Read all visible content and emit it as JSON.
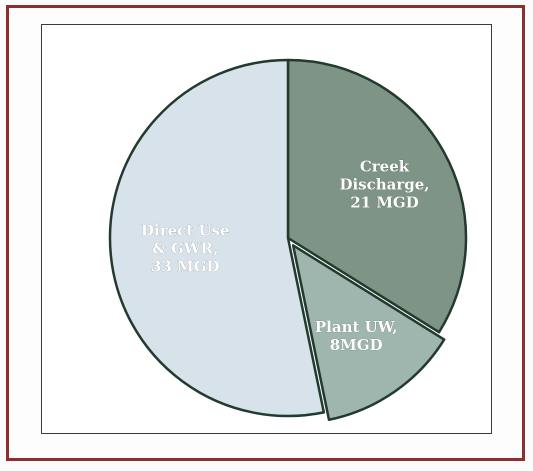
{
  "chart_data": {
    "type": "pie",
    "title": "",
    "slices": [
      {
        "label_lines": [
          "Creek",
          "Discharge,",
          "21 MGD"
        ],
        "value": 21,
        "color": "#7e9487"
      },
      {
        "label_lines": [
          "Plant UW,",
          "8MGD"
        ],
        "value": 8,
        "color": "#9fb6ae"
      },
      {
        "label_lines": [
          "Direct Use",
          "& GWR,",
          "33 MGD"
        ],
        "value": 33,
        "color": "#d7e2ea"
      }
    ],
    "start_angle_deg": 0,
    "explode_slice": 1,
    "legend": "none",
    "colors": {
      "frame_border": "#8e2f2f",
      "plot_border": "#3b3b3b",
      "slice_outline": "#233a2e",
      "label_text": "#ffffff"
    }
  }
}
